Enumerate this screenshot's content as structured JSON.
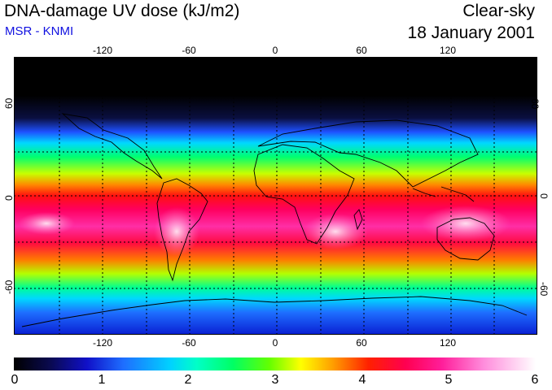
{
  "header": {
    "title": "DNA-damage UV dose (kJ/m2)",
    "subtitle": "MSR - KNMI",
    "condition": "Clear-sky",
    "date": "18 January 2001"
  },
  "map": {
    "longitude_labels": [
      "-120",
      "-60",
      "0",
      "60",
      "120"
    ],
    "latitude_labels": [
      "60",
      "0",
      "-60"
    ],
    "projection": "equirectangular",
    "lon_range": [
      -180,
      180
    ],
    "lat_range": [
      -90,
      90
    ]
  },
  "colorbar": {
    "ticks": [
      "0",
      "1",
      "2",
      "3",
      "4",
      "5",
      "6"
    ],
    "min": 0,
    "max": 6
  },
  "colors": {
    "subtitle": "#1010e0",
    "coastline": "#000000"
  }
}
